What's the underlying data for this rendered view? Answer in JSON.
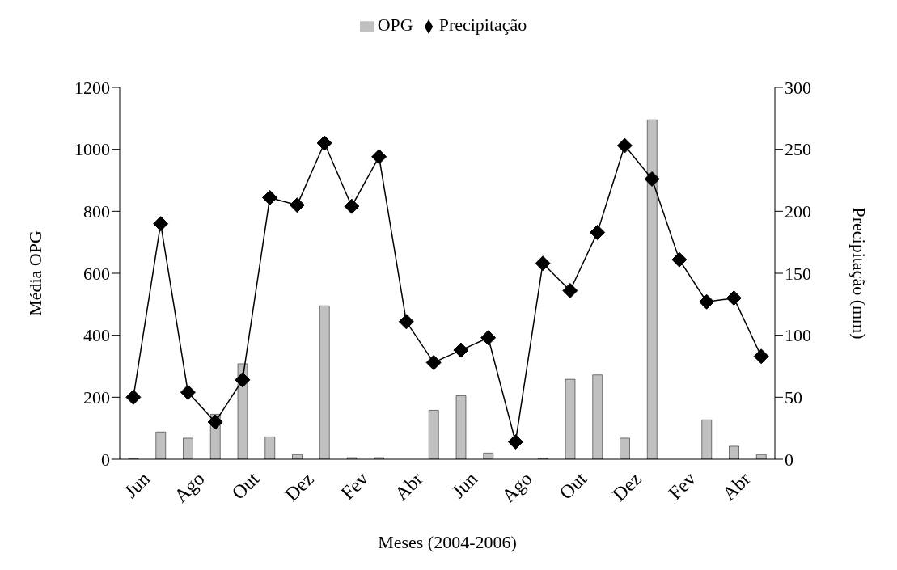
{
  "chart_data": {
    "type": "bar",
    "categories": [
      "Jun",
      null,
      "Ago",
      null,
      "Out",
      null,
      "Dez",
      null,
      "Fev",
      null,
      "Abr",
      null,
      "Jun",
      null,
      "Ago",
      null,
      "Out",
      null,
      "Dez",
      null,
      "Fev",
      null,
      "Abr",
      null
    ],
    "series": [
      {
        "name": "OPG",
        "color": "#c0c0c0",
        "values": [
          3,
          88,
          68,
          145,
          308,
          72,
          15,
          495,
          5,
          5,
          0,
          158,
          205,
          20,
          0,
          3,
          258,
          272,
          68,
          1095,
          0,
          127,
          42,
          15
        ]
      },
      {
        "name": "Precipitação",
        "type": "line",
        "axis": "y2",
        "color": "#000000",
        "marker": "diamond",
        "values": [
          50,
          190,
          54,
          30,
          64,
          211,
          205,
          255,
          204,
          244,
          111,
          78,
          88,
          98,
          14,
          158,
          136,
          183,
          253,
          226,
          161,
          127,
          130,
          83
        ]
      }
    ],
    "xlabel": "Meses (2004-2006)",
    "ylabel": "Média OPG",
    "y2label": "Precipitação (mm)",
    "ylim": [
      0,
      1200
    ],
    "yticks": [
      0,
      200,
      400,
      600,
      800,
      1000,
      1200
    ],
    "y2lim": [
      0,
      300
    ],
    "y2ticks": [
      0,
      50,
      100,
      150,
      200,
      250,
      300
    ],
    "legend": "top"
  }
}
